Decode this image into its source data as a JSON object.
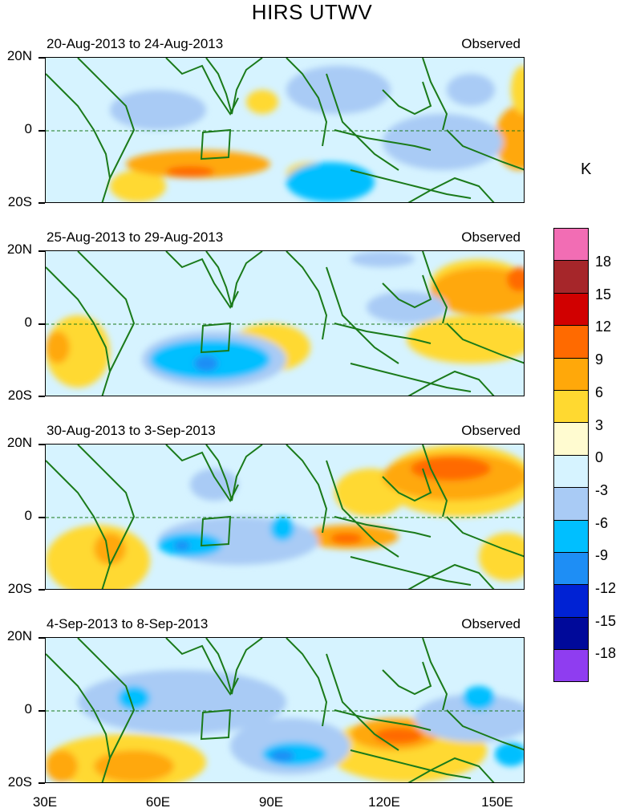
{
  "title": "HIRS UTWV",
  "unit_label": "K",
  "panels": [
    {
      "date_range": "20-Aug-2013 to 24-Aug-2013",
      "tag": "Observed"
    },
    {
      "date_range": "25-Aug-2013 to 29-Aug-2013",
      "tag": "Observed"
    },
    {
      "date_range": "30-Aug-2013 to 3-Sep-2013",
      "tag": "Observed"
    },
    {
      "date_range": "4-Sep-2013 to 8-Sep-2013",
      "tag": "Observed"
    }
  ],
  "lat_labels": [
    "20N",
    "0",
    "20S"
  ],
  "lon_labels": [
    "30E",
    "60E",
    "90E",
    "120E",
    "150E"
  ],
  "colorbar": {
    "levels": [
      "18",
      "15",
      "12",
      "9",
      "6",
      "3",
      "0",
      "-3",
      "-6",
      "-9",
      "-12",
      "-15",
      "-18"
    ],
    "colors": [
      "#f26db4",
      "#a6262a",
      "#d10000",
      "#ff6a00",
      "#ffa80a",
      "#ffd930",
      "#fffbd0",
      "#d6f3ff",
      "#a9cbf5",
      "#00bfff",
      "#1e8ef5",
      "#0022d4",
      "#00099a",
      "#8f3df0"
    ]
  },
  "map_colors": {
    "coast": "#1a7a1a",
    "equator": "#1a7a1a",
    "background": "#d6f3ff"
  }
}
